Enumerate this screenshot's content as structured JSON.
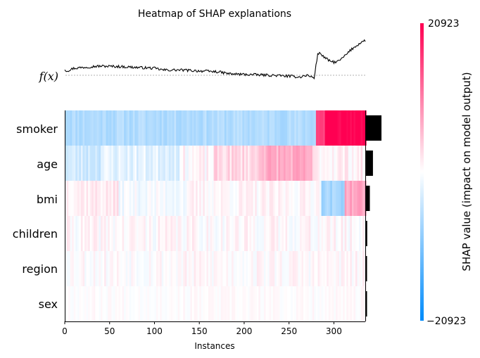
{
  "chart_data": {
    "type": "heatmap",
    "title": "Heatmap of SHAP explanations",
    "xlabel": "Instances",
    "fx_label": "f(x)",
    "x_range": [
      0,
      335
    ],
    "x_ticks": [
      "0",
      "50",
      "100",
      "150",
      "200",
      "250",
      "300"
    ],
    "features": [
      "smoker",
      "age",
      "bmi",
      "children",
      "region",
      "sex"
    ],
    "feature_importance": [
      1.0,
      0.45,
      0.25,
      0.08,
      0.06,
      0.04
    ],
    "colorbar": {
      "label": "SHAP value (impact on model output)",
      "max_label": "20923",
      "min_label": "−20923",
      "range": [
        -20923,
        20923
      ],
      "neg_color": "#008bfb",
      "pos_color": "#ff0052"
    },
    "fx_profile": {
      "x": [
        0,
        2,
        5,
        10,
        30,
        40,
        60,
        80,
        100,
        110,
        130,
        150,
        170,
        185,
        200,
        215,
        230,
        250,
        262,
        270,
        278,
        282,
        285,
        290,
        295,
        300,
        305,
        310,
        320,
        330,
        335
      ],
      "frac": [
        0.14,
        0.1,
        0.12,
        0.16,
        0.2,
        0.21,
        0.2,
        0.18,
        0.16,
        0.12,
        0.12,
        0.1,
        0.08,
        0.03,
        0.02,
        0.01,
        0.0,
        -0.02,
        -0.04,
        0.0,
        -0.06,
        0.49,
        0.5,
        0.4,
        0.33,
        0.3,
        0.32,
        0.4,
        0.6,
        0.75,
        0.8
      ]
    },
    "rows": {
      "smoker": {
        "segments": [
          {
            "x0": 0,
            "x1": 280,
            "value": -0.3
          },
          {
            "x0": 280,
            "x1": 290,
            "value": 0.75
          },
          {
            "x0": 290,
            "x1": 335,
            "value": 1.0
          }
        ],
        "noise": 0.07,
        "seed": 11
      },
      "age": {
        "segments": [
          {
            "x0": 0,
            "x1": 40,
            "value": -0.18
          },
          {
            "x0": 40,
            "x1": 130,
            "value": -0.1
          },
          {
            "x0": 130,
            "x1": 165,
            "value": 0.02
          },
          {
            "x0": 165,
            "x1": 215,
            "value": 0.15
          },
          {
            "x0": 215,
            "x1": 275,
            "value": 0.32
          },
          {
            "x0": 275,
            "x1": 335,
            "value": 0.06
          }
        ],
        "noise": 0.1,
        "seed": 23
      },
      "bmi": {
        "segments": [
          {
            "x0": 0,
            "x1": 60,
            "value": 0.08
          },
          {
            "x0": 60,
            "x1": 140,
            "value": -0.03
          },
          {
            "x0": 140,
            "x1": 285,
            "value": 0.03
          },
          {
            "x0": 285,
            "x1": 312,
            "value": -0.35
          },
          {
            "x0": 312,
            "x1": 335,
            "value": 0.35
          }
        ],
        "noise": 0.08,
        "seed": 37
      },
      "children": {
        "segments": [
          {
            "x0": 0,
            "x1": 335,
            "value": 0.02
          }
        ],
        "noise": 0.09,
        "seed": 41
      },
      "region": {
        "segments": [
          {
            "x0": 0,
            "x1": 335,
            "value": 0.02
          }
        ],
        "noise": 0.08,
        "seed": 53
      },
      "sex": {
        "segments": [
          {
            "x0": 0,
            "x1": 335,
            "value": 0.01
          }
        ],
        "noise": 0.04,
        "seed": 67
      }
    }
  }
}
